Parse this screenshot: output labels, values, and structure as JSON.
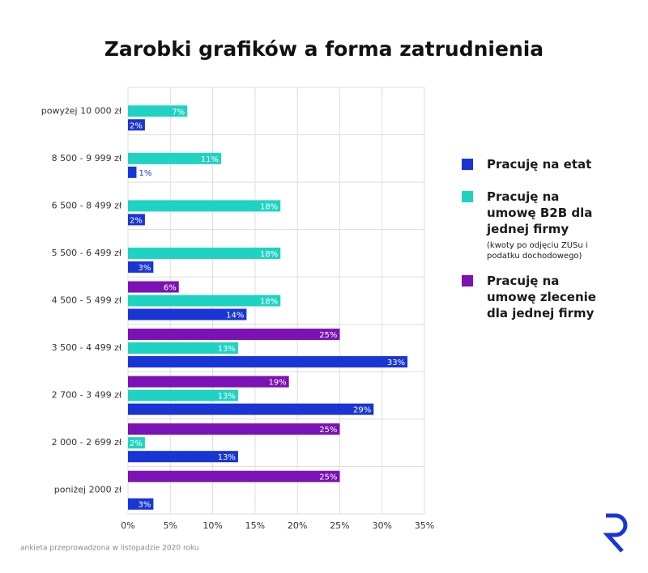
{
  "chart_data": {
    "type": "bar",
    "orientation": "horizontal",
    "title": "Zarobki grafików a forma zatrudnienia",
    "categories": [
      "powyżej 10 000 zł",
      "8 500 - 9 999 zł",
      "6 500 - 8 499 zł",
      "5 500 - 6 499 zł",
      "4 500 - 5 499 zł",
      "3 500 - 4 499 zł",
      "2 700 - 3 499 zł",
      "2 000 - 2 699 zł",
      "poniżej 2000 zł"
    ],
    "series": [
      {
        "name": "Pracuję na etat",
        "color": "#1a35d6",
        "values": [
          2,
          1,
          2,
          3,
          14,
          33,
          29,
          13,
          3
        ],
        "value_labels": [
          "2%",
          "1%",
          "2%",
          "3%",
          "14%",
          "33%",
          "29%",
          "13%",
          "3%"
        ]
      },
      {
        "name": "Pracuję na umowę B2B dla jednej firmy",
        "color": "#1fd3c3",
        "values": [
          7,
          11,
          18,
          18,
          18,
          13,
          13,
          2,
          null
        ],
        "value_labels": [
          "7%",
          "11%",
          "18%",
          "18%",
          "18%",
          "13%",
          "13%",
          "2%",
          null
        ]
      },
      {
        "name": "Pracuję na umowę zlecenie dla jednej firmy",
        "color": "#7a12b5",
        "values": [
          null,
          null,
          null,
          null,
          6,
          25,
          19,
          25,
          25
        ],
        "value_labels": [
          null,
          null,
          null,
          null,
          "6%",
          "25%",
          "19%",
          "25%",
          "25%"
        ]
      }
    ],
    "legend_note": "(kwoty po odjęciu ZUSu i podatku dochodowego)",
    "footnote": "ankieta przeprowadzona w listopadzie 2020 roku",
    "xlim": [
      0,
      35
    ],
    "xticks": [
      {
        "value": 0,
        "label": "0%"
      },
      {
        "value": 5,
        "label": "5%"
      },
      {
        "value": 10,
        "label": "10%"
      },
      {
        "value": 15,
        "label": "15%"
      },
      {
        "value": 20,
        "label": "20%"
      },
      {
        "value": 25,
        "label": "25%"
      },
      {
        "value": 30,
        "label": "30%"
      },
      {
        "value": 35,
        "label": "35%"
      }
    ],
    "grid": true,
    "legend": "right"
  }
}
